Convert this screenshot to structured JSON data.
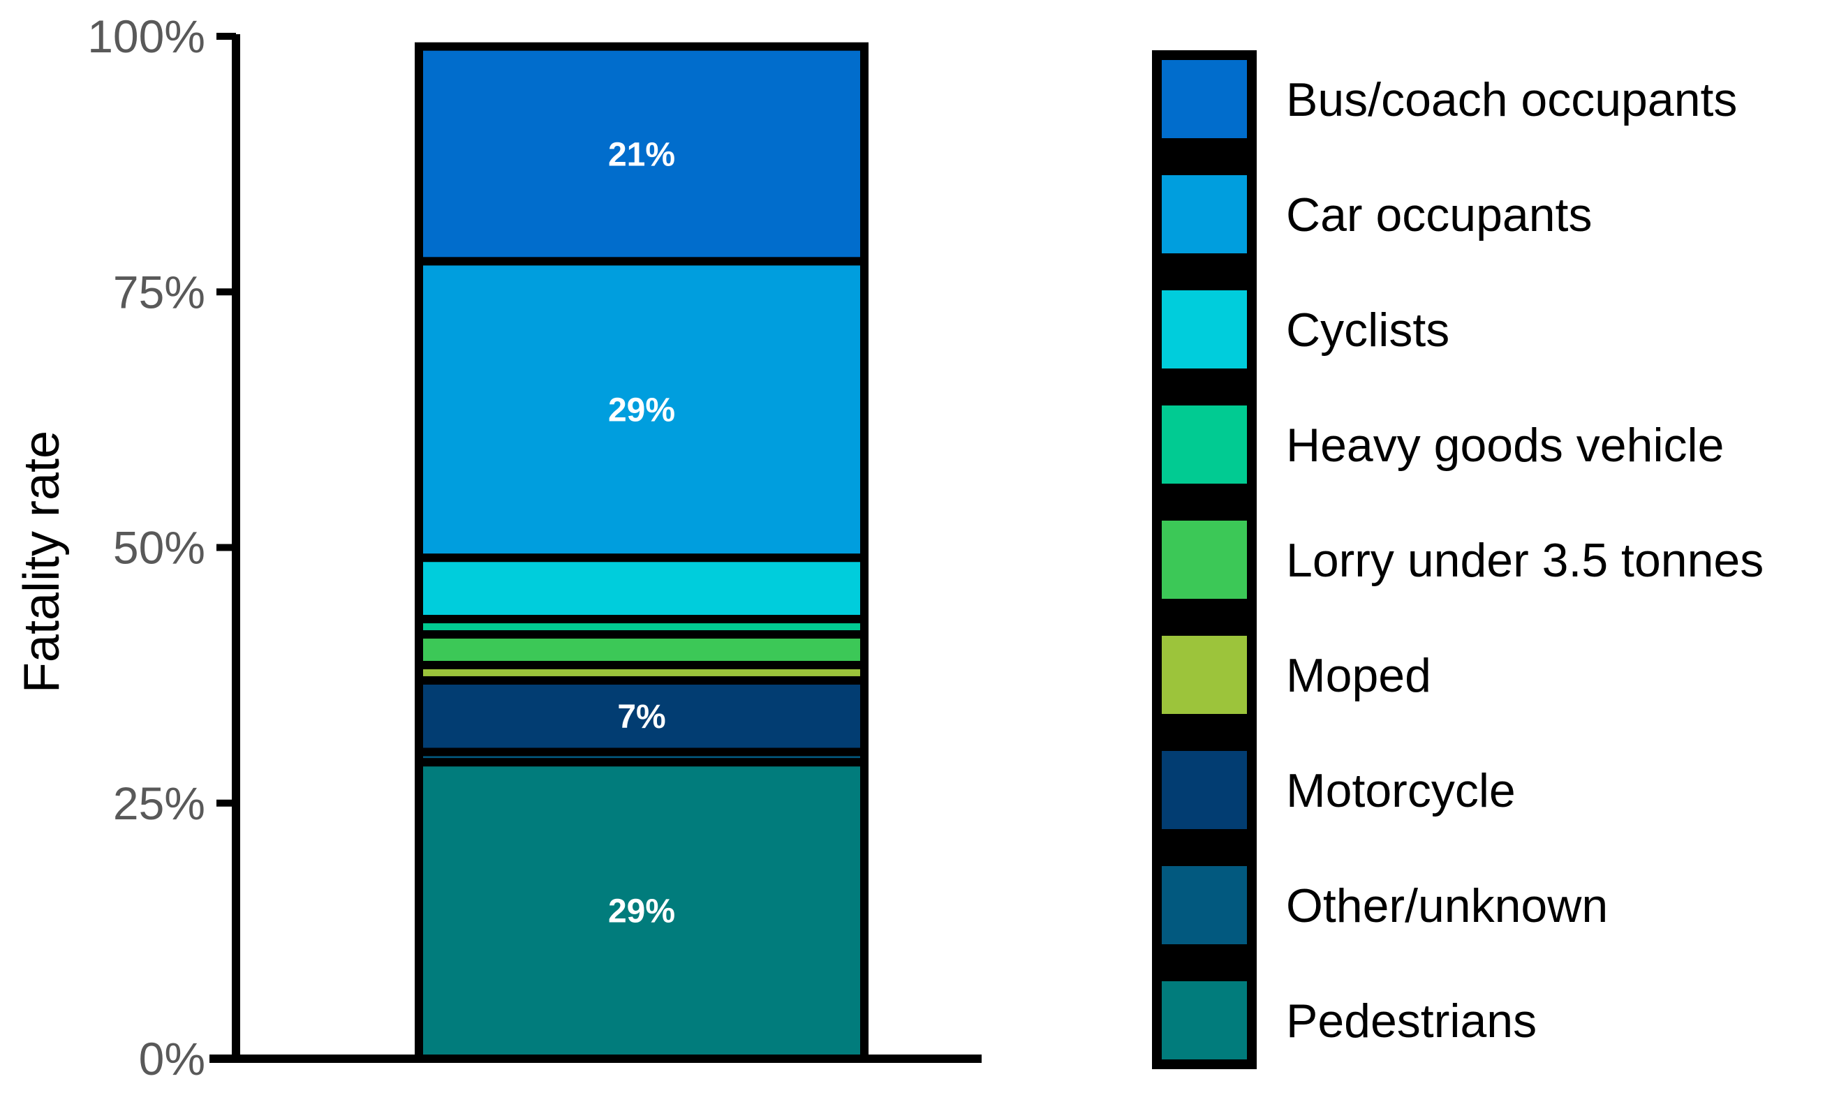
{
  "chart_data": {
    "type": "bar",
    "stacked": true,
    "title": "",
    "xlabel": "",
    "ylabel": "Fatality rate",
    "ylim": [
      0,
      100
    ],
    "yticks": [
      "0%",
      "25%",
      "50%",
      "75%",
      "100%"
    ],
    "categories": [
      ""
    ],
    "series": [
      {
        "name": "Pedestrians",
        "values": [
          29
        ],
        "label": "29%",
        "color": "#017c7c"
      },
      {
        "name": "Other/unknown",
        "values": [
          1
        ],
        "label": "",
        "color": "#02597f"
      },
      {
        "name": "Motorcycle",
        "values": [
          7
        ],
        "label": "7%",
        "color": "#023d72"
      },
      {
        "name": "Moped",
        "values": [
          1.5
        ],
        "label": "",
        "color": "#9cc43b"
      },
      {
        "name": "Lorry under 3.5 tonnes",
        "values": [
          3
        ],
        "label": "",
        "color": "#3cc857"
      },
      {
        "name": "Heavy goods vehicle",
        "values": [
          1.5
        ],
        "label": "",
        "color": "#01cb92"
      },
      {
        "name": "Cyclists",
        "values": [
          6
        ],
        "label": "",
        "color": "#00cddc"
      },
      {
        "name": "Car occupants",
        "values": [
          29
        ],
        "label": "29%",
        "color": "#009ede"
      },
      {
        "name": "Bus/coach occupants",
        "values": [
          21
        ],
        "label": "21%",
        "color": "#016dcc"
      }
    ],
    "legend": {
      "position": "right",
      "order": [
        "Bus/coach occupants",
        "Car occupants",
        "Cyclists",
        "Heavy goods vehicle",
        "Lorry under 3.5 tonnes",
        "Moped",
        "Motorcycle",
        "Other/unknown",
        "Pedestrians"
      ]
    }
  }
}
